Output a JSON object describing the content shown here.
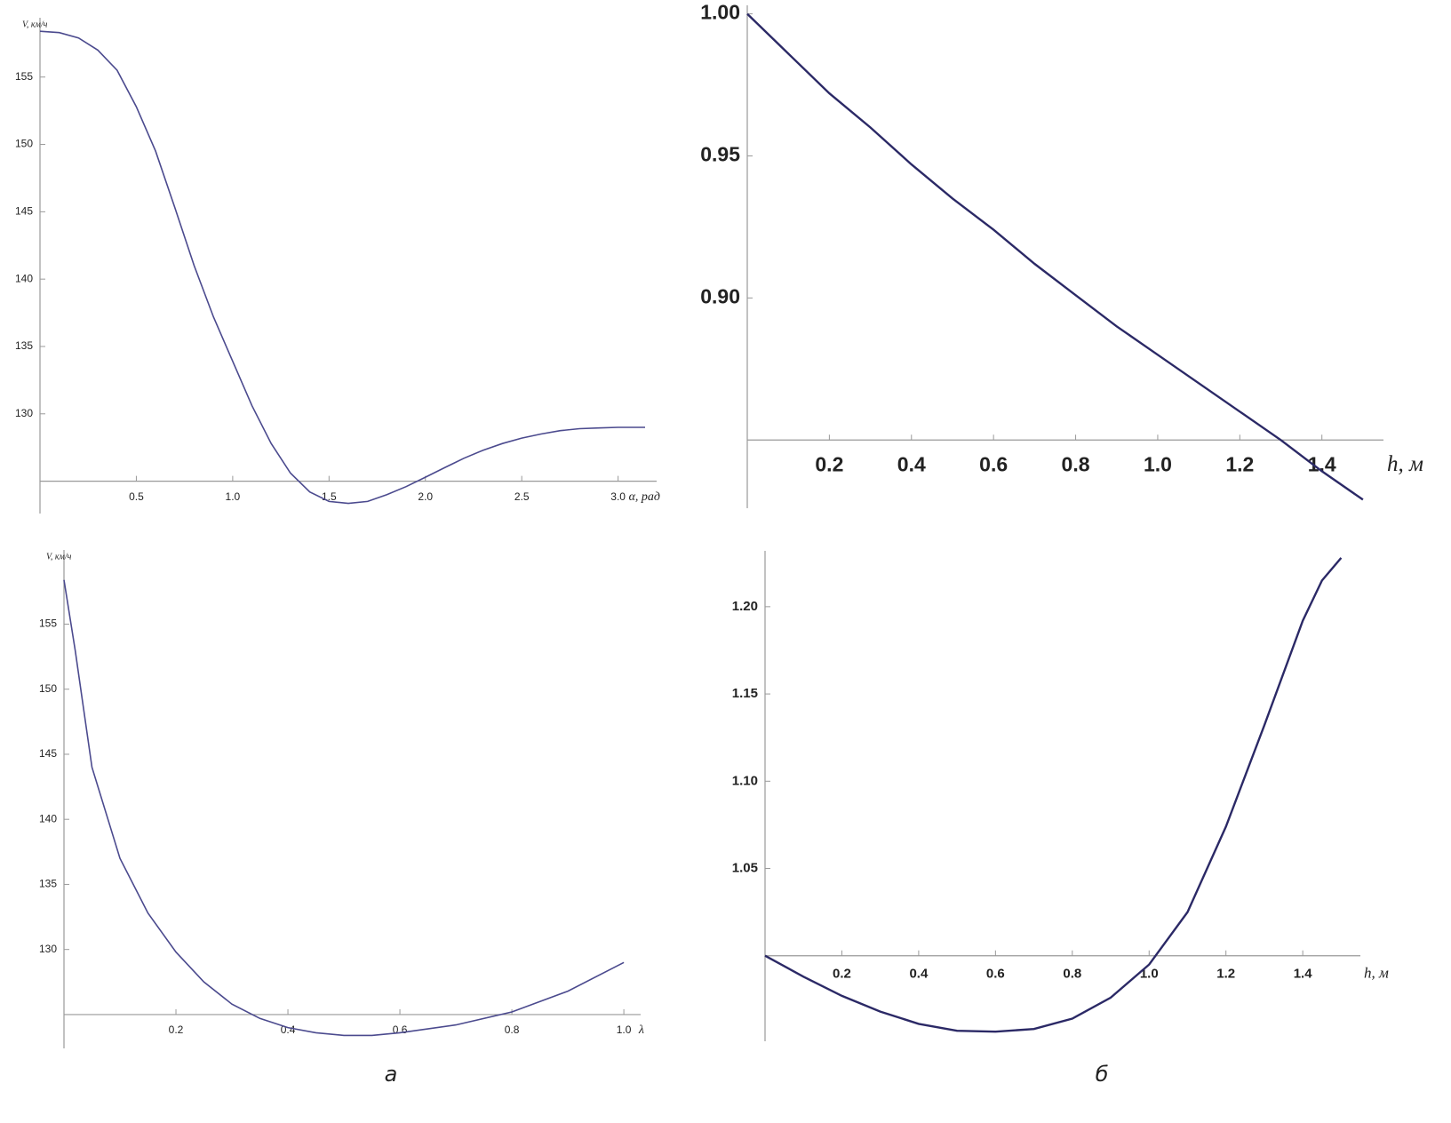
{
  "chart_data": [
    {
      "type": "line",
      "y_label": "V, км/ч",
      "x_label": "α, рад",
      "x": [
        0,
        0.1,
        0.2,
        0.3,
        0.4,
        0.5,
        0.6,
        0.7,
        0.8,
        0.9,
        1.0,
        1.1,
        1.2,
        1.3,
        1.4,
        1.5,
        1.6,
        1.7,
        1.8,
        1.9,
        2.0,
        2.1,
        2.2,
        2.3,
        2.4,
        2.5,
        2.6,
        2.7,
        2.8,
        2.9,
        3.0,
        3.14
      ],
      "values": [
        158.4,
        158.3,
        157.9,
        157.0,
        155.5,
        152.8,
        149.5,
        145.3,
        141.0,
        137.2,
        133.9,
        130.6,
        127.8,
        125.6,
        124.2,
        123.5,
        123.35,
        123.5,
        124.0,
        124.6,
        125.3,
        126.0,
        126.7,
        127.3,
        127.8,
        128.2,
        128.5,
        128.75,
        128.9,
        128.95,
        129.0,
        129.0
      ],
      "color": "#4b4a8e",
      "xlim": [
        0,
        3.2
      ],
      "ylim": [
        122.6,
        159.4
      ],
      "axis_origin": [
        0,
        125
      ],
      "xticks": [
        0.5,
        {
          "value": 1.0,
          "label": "1.0"
        },
        1.5,
        {
          "value": 2.0,
          "label": "2.0"
        },
        2.5,
        {
          "value": 3.0,
          "label": "3.0"
        }
      ],
      "yticks": [
        130,
        135,
        140,
        145,
        150,
        155
      ]
    },
    {
      "type": "line",
      "x_label": "h, м",
      "x": [
        0,
        0.1,
        0.2,
        0.3,
        0.4,
        0.5,
        0.6,
        0.7,
        0.8,
        0.9,
        1.0,
        1.1,
        1.2,
        1.3,
        1.4,
        1.5
      ],
      "values": [
        1.0,
        0.986,
        0.972,
        0.96,
        0.947,
        0.935,
        0.924,
        0.912,
        0.901,
        0.89,
        0.88,
        0.87,
        0.86,
        0.85,
        0.839,
        0.829
      ],
      "color": "#2b2966",
      "xlim": [
        0,
        1.55
      ],
      "ylim": [
        0.826,
        1.003
      ],
      "axis_origin": [
        0,
        0.85
      ],
      "xticks": [
        0.2,
        0.4,
        0.6,
        0.8,
        {
          "value": 1.0,
          "label": "1.0"
        },
        1.2,
        1.4
      ],
      "yticks": [
        {
          "value": 0.9,
          "label": "0.90"
        },
        0.95,
        {
          "value": 1.0,
          "label": "1.00"
        }
      ]
    },
    {
      "type": "line",
      "y_label": "V, км/ч",
      "x_label": "λ",
      "x": [
        0,
        0.02,
        0.05,
        0.1,
        0.15,
        0.2,
        0.25,
        0.3,
        0.35,
        0.4,
        0.45,
        0.5,
        0.55,
        0.6,
        0.7,
        0.8,
        0.9,
        1.0
      ],
      "values": [
        158.4,
        153.0,
        144.0,
        137.0,
        132.8,
        129.8,
        127.5,
        125.8,
        124.7,
        124.0,
        123.6,
        123.4,
        123.4,
        123.6,
        124.2,
        125.2,
        126.8,
        129.0
      ],
      "color": "#4b4a8e",
      "xlim": [
        0,
        1.03
      ],
      "ylim": [
        122.4,
        160.7
      ],
      "axis_origin": [
        0,
        125
      ],
      "xticks": [
        0.2,
        0.4,
        0.6,
        0.8,
        {
          "value": 1.0,
          "label": "1.0"
        }
      ],
      "yticks": [
        130,
        135,
        140,
        145,
        150,
        155
      ]
    },
    {
      "type": "line",
      "x_label": "h, м",
      "x": [
        0,
        0.1,
        0.2,
        0.3,
        0.4,
        0.5,
        0.6,
        0.7,
        0.8,
        0.9,
        1.0,
        1.1,
        1.2,
        1.3,
        1.4,
        1.45,
        1.5
      ],
      "values": [
        1.0,
        0.988,
        0.977,
        0.968,
        0.961,
        0.957,
        0.9565,
        0.958,
        0.964,
        0.976,
        0.995,
        1.025,
        1.074,
        1.132,
        1.192,
        1.215,
        1.228
      ],
      "color": "#2b2966",
      "xlim": [
        0,
        1.55
      ],
      "ylim": [
        0.951,
        1.232
      ],
      "axis_origin": [
        0,
        1.0
      ],
      "xticks": [
        0.2,
        0.4,
        0.6,
        0.8,
        {
          "value": 1.0,
          "label": "1.0"
        },
        1.2,
        1.4
      ],
      "yticks": [
        1.05,
        {
          "value": 1.1,
          "label": "1.10"
        },
        1.15,
        {
          "value": 1.2,
          "label": "1.20"
        }
      ]
    }
  ],
  "captions": [
    "а",
    "б"
  ]
}
